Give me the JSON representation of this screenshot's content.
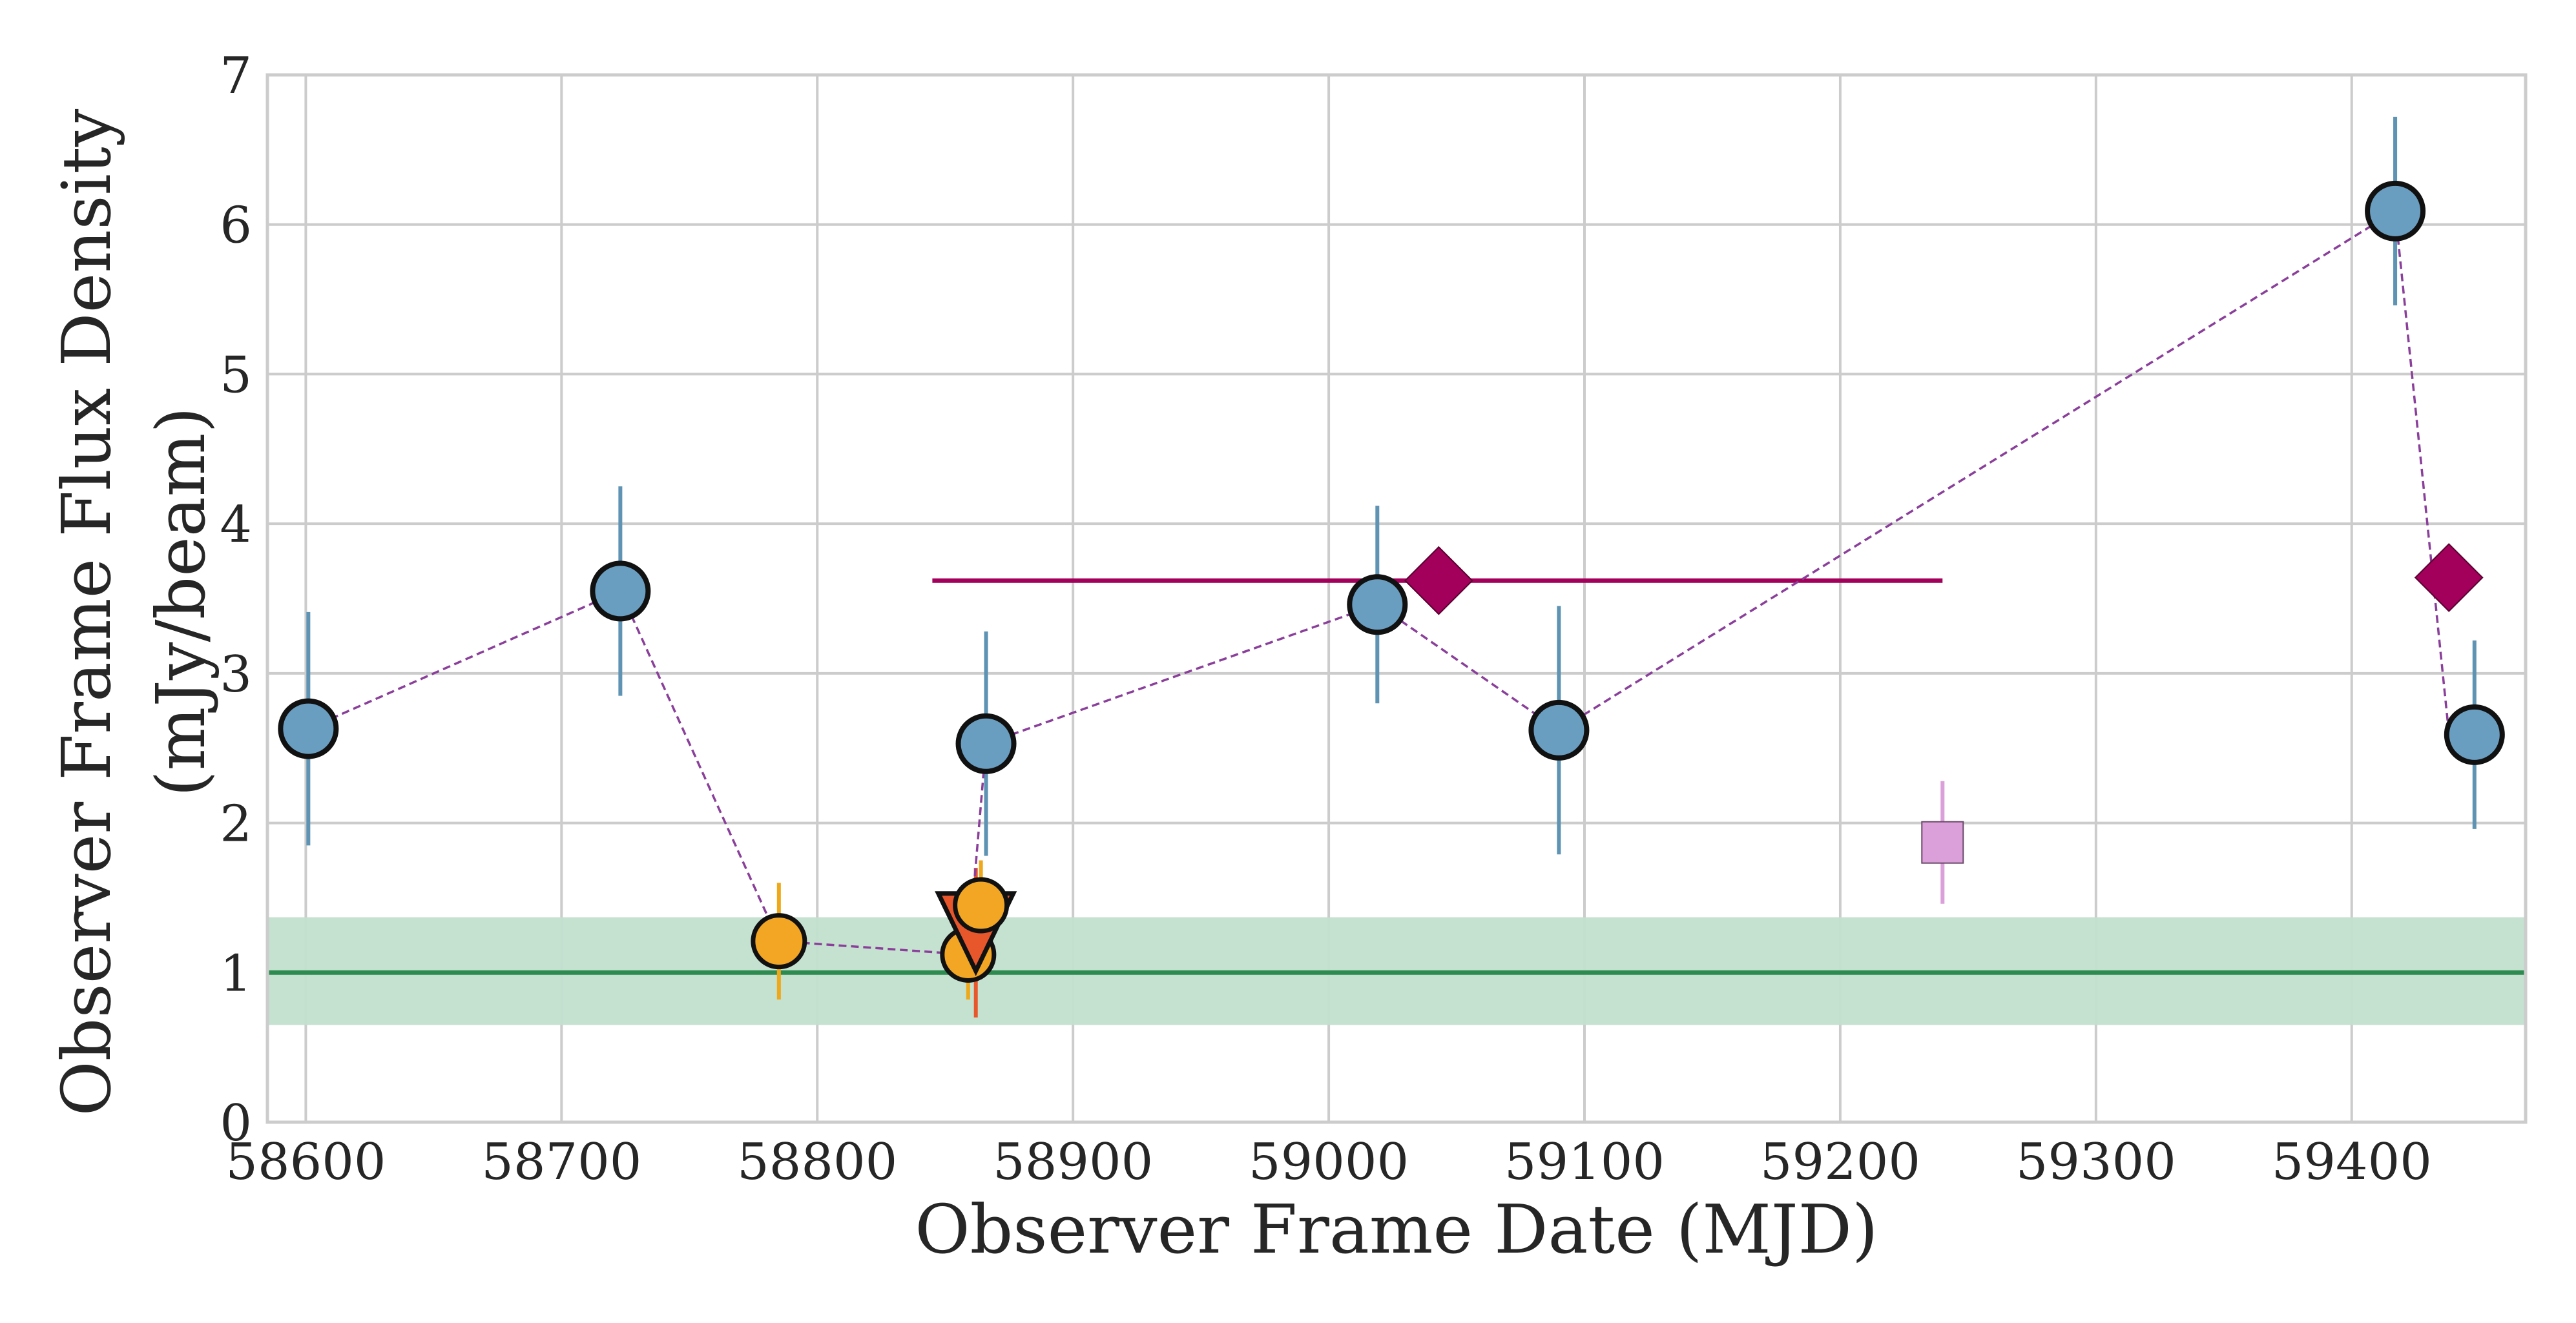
{
  "chart_data": {
    "type": "scatter",
    "xlabel": "Observer Frame Date (MJD)",
    "ylabel_lines": [
      "Observer Frame Flux Density",
      "(mJy/beam)"
    ],
    "xlim": [
      58585,
      59468
    ],
    "ylim": [
      0,
      7
    ],
    "xticks": [
      58600,
      58700,
      58800,
      58900,
      59000,
      59100,
      59200,
      59300,
      59400
    ],
    "yticks": [
      0,
      1,
      2,
      3,
      4,
      5,
      6,
      7
    ],
    "grid": true,
    "colors": {
      "blue": "#6a9ec1",
      "blue_err": "#5e93b3",
      "orange": "#f3a623",
      "orange_err": "#eea81a",
      "red": "#e8562c",
      "magenta": "#a2005a",
      "pink": "#dba0da",
      "band_fill": "#c2dfce",
      "band_line": "#2e8b50",
      "dash": "#8a3f9a",
      "grid": "#cccccc",
      "edge": "#111111"
    },
    "band": {
      "center": 1.0,
      "low": 0.65,
      "high": 1.37
    },
    "blue_points": [
      {
        "x": 58601,
        "y": 2.63,
        "yerr": 0.78
      },
      {
        "x": 58723,
        "y": 3.55,
        "yerr": 0.7
      },
      {
        "x": 58866,
        "y": 2.53,
        "yerr": 0.75
      },
      {
        "x": 59019,
        "y": 3.46,
        "yerr": 0.66
      },
      {
        "x": 59090,
        "y": 2.62,
        "yerr": 0.83
      },
      {
        "x": 59417,
        "y": 6.09,
        "yerr": 0.63
      },
      {
        "x": 59448,
        "y": 2.59,
        "yerr": 0.63
      }
    ],
    "orange_points": [
      {
        "x": 58785,
        "y": 1.21,
        "yerr": 0.39
      },
      {
        "x": 58859,
        "y": 1.12,
        "yerr": 0.3
      },
      {
        "x": 58864,
        "y": 1.45,
        "yerr": 0.3
      }
    ],
    "upper_limits": [
      {
        "x": 58862,
        "y": 1.27,
        "yerr_low": 0.57,
        "yerr_high": 0.43
      }
    ],
    "diamonds": [
      {
        "x": 59043,
        "y": 3.62,
        "xmin": 58845,
        "xmax": 59240
      },
      {
        "x": 59438,
        "y": 3.64
      }
    ],
    "squares": [
      {
        "x": 59240,
        "y": 1.87,
        "yerr": 0.41
      }
    ],
    "dashed_line": [
      {
        "x": 58601,
        "y": 2.63
      },
      {
        "x": 58723,
        "y": 3.55
      },
      {
        "x": 58785,
        "y": 1.21
      },
      {
        "x": 58859,
        "y": 1.12
      },
      {
        "x": 58866,
        "y": 2.53
      },
      {
        "x": 59019,
        "y": 3.46
      },
      {
        "x": 59090,
        "y": 2.62
      },
      {
        "x": 59417,
        "y": 6.09
      },
      {
        "x": 59438,
        "y": 2.6
      }
    ]
  }
}
